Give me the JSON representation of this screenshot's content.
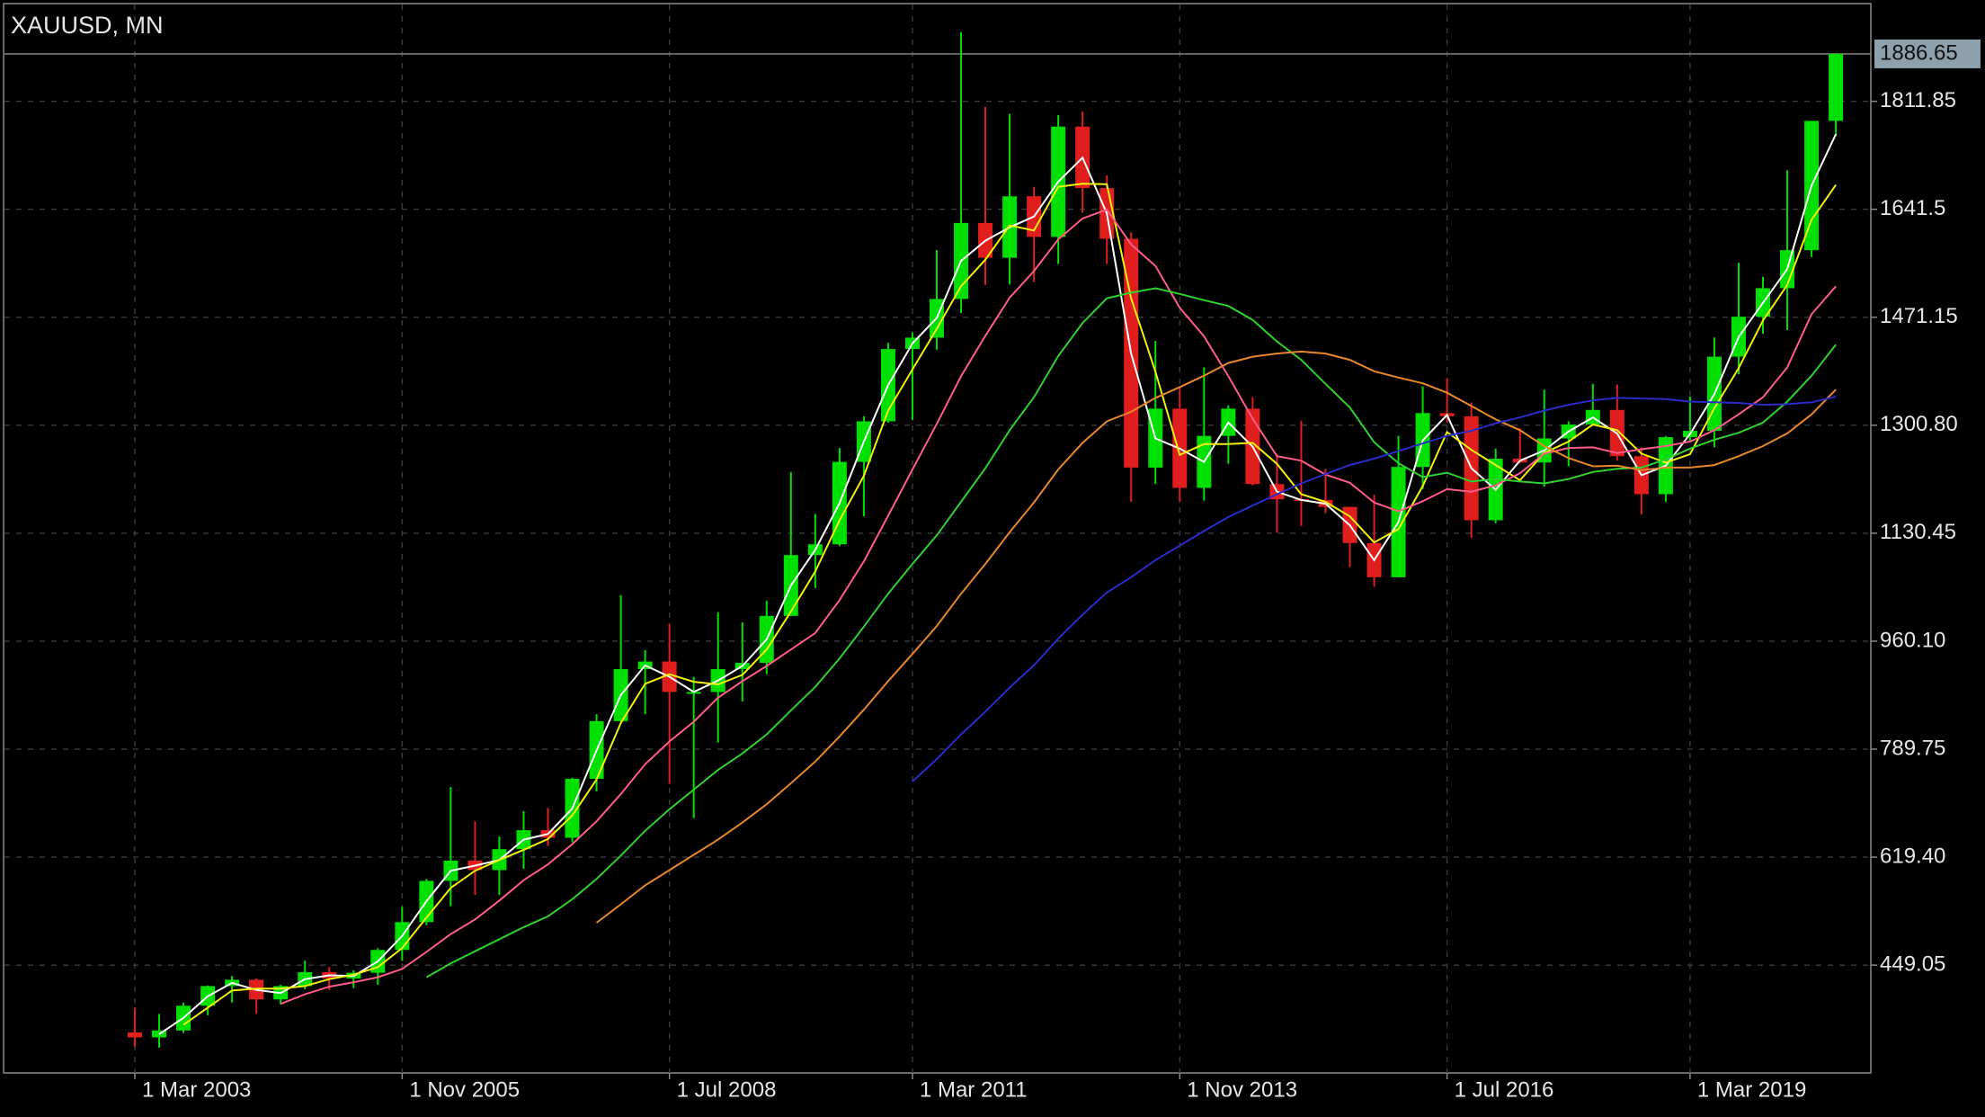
{
  "chart_data": {
    "type": "candlestick",
    "title": "XAUUSD, MN",
    "categories": [
      "1 Mar 2003",
      null,
      null,
      null,
      null,
      null,
      null,
      null,
      null,
      null,
      null,
      "1 Nov 2005",
      null,
      null,
      null,
      null,
      null,
      null,
      null,
      null,
      null,
      null,
      "1 Jul 2008",
      null,
      null,
      null,
      null,
      null,
      null,
      null,
      null,
      null,
      "1 Mar 2011",
      null,
      null,
      null,
      null,
      null,
      null,
      null,
      null,
      null,
      null,
      "1 Nov 2013",
      null,
      null,
      null,
      null,
      null,
      null,
      null,
      null,
      null,
      null,
      "1 Jul 2016",
      null,
      null,
      null,
      null,
      null,
      null,
      null,
      null,
      null,
      "1 Mar 2019",
      null,
      null,
      null,
      null,
      null,
      null
    ],
    "open": [
      343,
      335,
      346,
      385,
      416,
      426,
      395,
      416,
      438,
      428,
      437,
      473,
      517,
      582,
      614,
      599,
      632,
      662,
      650,
      743,
      834,
      916,
      928,
      880,
      880,
      916,
      926,
      1000,
      1096,
      1113,
      1243,
      1307,
      1421,
      1439,
      1500,
      1620,
      1565,
      1662,
      1598,
      1772,
      1675,
      1595,
      1234,
      1327,
      1202,
      1284,
      1327,
      1208,
      1184,
      1183,
      1172,
      1115,
      1061,
      1235,
      1320,
      1315,
      1151,
      1248,
      1242,
      1280,
      1302,
      1325,
      1252,
      1192,
      1282,
      1292,
      1409,
      1472,
      1517,
      1577,
      1781
    ],
    "high": [
      382,
      372,
      390,
      417,
      432,
      428,
      418,
      456,
      446,
      441,
      476,
      541,
      585,
      730,
      676,
      652,
      692,
      697,
      745,
      845,
      1033,
      946,
      988,
      904,
      1006,
      990,
      1024,
      1227,
      1161,
      1265,
      1315,
      1431,
      1447,
      1577,
      1921,
      1803,
      1792,
      1677,
      1790,
      1796,
      1695,
      1605,
      1434,
      1361,
      1392,
      1332,
      1345,
      1255,
      1308,
      1232,
      1172,
      1191,
      1284,
      1362,
      1375,
      1337,
      1264,
      1296,
      1357,
      1307,
      1366,
      1365,
      1266,
      1284,
      1346,
      1439,
      1557,
      1535,
      1703,
      1765,
      1888
    ],
    "low": [
      320,
      319,
      342,
      370,
      390,
      372,
      387,
      411,
      410,
      413,
      418,
      456,
      512,
      542,
      560,
      560,
      601,
      637,
      643,
      723,
      833,
      845,
      735,
      681,
      800,
      865,
      908,
      1000,
      1044,
      1110,
      1157,
      1305,
      1309,
      1420,
      1478,
      1522,
      1523,
      1527,
      1555,
      1636,
      1555,
      1180,
      1208,
      1180,
      1182,
      1240,
      1206,
      1131,
      1142,
      1162,
      1077,
      1046,
      1061,
      1200,
      1305,
      1123,
      1146,
      1241,
      1204,
      1236,
      1300,
      1245,
      1160,
      1180,
      1276,
      1266,
      1381,
      1445,
      1451,
      1566,
      1757
    ],
    "close": [
      335,
      346,
      385,
      416,
      426,
      395,
      416,
      438,
      428,
      437,
      473,
      517,
      582,
      614,
      599,
      632,
      662,
      650,
      743,
      834,
      916,
      928,
      880,
      880,
      916,
      926,
      1000,
      1096,
      1113,
      1243,
      1307,
      1421,
      1439,
      1500,
      1620,
      1565,
      1662,
      1598,
      1772,
      1675,
      1595,
      1234,
      1327,
      1202,
      1284,
      1327,
      1208,
      1184,
      1183,
      1172,
      1115,
      1061,
      1235,
      1320,
      1315,
      1151,
      1248,
      1242,
      1280,
      1302,
      1325,
      1252,
      1192,
      1282,
      1292,
      1409,
      1472,
      1517,
      1577,
      1781,
      1886.65
    ],
    "up_color": "#00e000",
    "down_color": "#e01e1e",
    "overlays": [
      {
        "color": "#ffffff",
        "values": [
          null,
          340,
          366,
          400,
          421,
          410,
          405,
          427,
          433,
          432,
          455,
          495,
          550,
          598,
          606,
          615,
          647,
          656,
          696,
          788,
          875,
          922,
          904,
          880,
          898,
          921,
          963,
          1048,
          1104,
          1178,
          1275,
          1364,
          1430,
          1470,
          1560,
          1592,
          1613,
          1630,
          1685,
          1723,
          1635,
          1414,
          1280,
          1264,
          1243,
          1305,
          1267,
          1196,
          1183,
          1177,
          1143,
          1088,
          1148,
          1277,
          1317,
          1233,
          1199,
          1245,
          1261,
          1291,
          1313,
          1288,
          1222,
          1237,
          1287,
          1350,
          1440,
          1494,
          1547,
          1679,
          1760
        ]
      },
      {
        "color": "#f2f20a",
        "values": [
          null,
          null,
          355,
          382,
          409,
          412,
          412,
          416,
          427,
          434,
          446,
          476,
          524,
          571,
          598,
          615,
          631,
          648,
          685,
          742,
          831,
          893,
          908,
          896,
          892,
          907,
          947,
          1007,
          1070,
          1151,
          1221,
          1324,
          1389,
          1453,
          1520,
          1562,
          1616,
          1608,
          1677,
          1682,
          1681,
          1501,
          1385,
          1254,
          1271,
          1271,
          1273,
          1240,
          1192,
          1180,
          1157,
          1116,
          1137,
          1205,
          1290,
          1262,
          1238,
          1214,
          1257,
          1275,
          1302,
          1293,
          1256,
          1242,
          1255,
          1328,
          1391,
          1466,
          1522,
          1625,
          1680
        ]
      },
      {
        "color": "#ff5c8a",
        "values": [
          null,
          null,
          null,
          null,
          null,
          null,
          388,
          403,
          415,
          422,
          430,
          443,
          470,
          498,
          521,
          551,
          583,
          608,
          640,
          676,
          719,
          766,
          802,
          833,
          871,
          897,
          921,
          947,
          973,
          1025,
          1086,
          1158,
          1231,
          1303,
          1378,
          1442,
          1502,
          1544,
          1594,
          1627,
          1641,
          1586,
          1552,
          1486,
          1441,
          1378,
          1311,
          1252,
          1245,
          1223,
          1210,
          1179,
          1165,
          1181,
          1200,
          1196,
          1206,
          1225,
          1256,
          1265,
          1266,
          1257,
          1263,
          1268,
          1275,
          1293,
          1318,
          1345,
          1392,
          1476,
          1520
        ]
      },
      {
        "color": "#2ed12e",
        "values": [
          null,
          null,
          null,
          null,
          null,
          null,
          null,
          null,
          null,
          null,
          null,
          null,
          430,
          452,
          471,
          490,
          509,
          526,
          553,
          585,
          622,
          661,
          695,
          726,
          757,
          783,
          813,
          851,
          888,
          933,
          983,
          1035,
          1082,
          1127,
          1180,
          1233,
          1293,
          1345,
          1410,
          1462,
          1501,
          1510,
          1517,
          1508,
          1498,
          1489,
          1467,
          1433,
          1404,
          1366,
          1329,
          1274,
          1241,
          1219,
          1226,
          1212,
          1216,
          1212,
          1209,
          1216,
          1227,
          1232,
          1234,
          1247,
          1264,
          1278,
          1289,
          1305,
          1338,
          1379,
          1428
        ]
      },
      {
        "color": "#e8862a",
        "values": [
          null,
          null,
          null,
          null,
          null,
          null,
          null,
          null,
          null,
          null,
          null,
          null,
          null,
          null,
          null,
          null,
          null,
          null,
          null,
          516,
          545,
          575,
          599,
          623,
          647,
          674,
          703,
          736,
          770,
          810,
          852,
          897,
          940,
          984,
          1035,
          1082,
          1132,
          1179,
          1231,
          1273,
          1307,
          1322,
          1344,
          1361,
          1379,
          1399,
          1409,
          1414,
          1417,
          1414,
          1404,
          1386,
          1376,
          1367,
          1352,
          1331,
          1310,
          1293,
          1268,
          1249,
          1236,
          1237,
          1230,
          1234,
          1234,
          1238,
          1252,
          1268,
          1288,
          1318,
          1357
        ]
      },
      {
        "color": "#2b2bc8",
        "values": [
          null,
          null,
          null,
          null,
          null,
          null,
          null,
          null,
          null,
          null,
          null,
          null,
          null,
          null,
          null,
          null,
          null,
          null,
          null,
          null,
          null,
          null,
          null,
          null,
          null,
          null,
          null,
          null,
          null,
          null,
          null,
          null,
          739,
          774,
          813,
          849,
          887,
          922,
          964,
          1002,
          1037,
          1061,
          1088,
          1111,
          1134,
          1156,
          1174,
          1192,
          1209,
          1224,
          1238,
          1248,
          1260,
          1272,
          1284,
          1292,
          1304,
          1313,
          1324,
          1333,
          1340,
          1344,
          1343,
          1342,
          1338,
          1337,
          1336,
          1333,
          1334,
          1337,
          1346
        ]
      }
    ],
    "current_price": 1886.65,
    "ylim": [
      279,
      1966
    ],
    "yticks": [
      449.05,
      {
        "value": 619.4,
        "label": "619.40"
      },
      789.75,
      {
        "value": 960.1,
        "label": "960.10"
      },
      1130.45,
      {
        "value": 1300.8,
        "label": "1300.80"
      },
      1471.15,
      1641.5,
      1811.85
    ],
    "grid": true
  }
}
